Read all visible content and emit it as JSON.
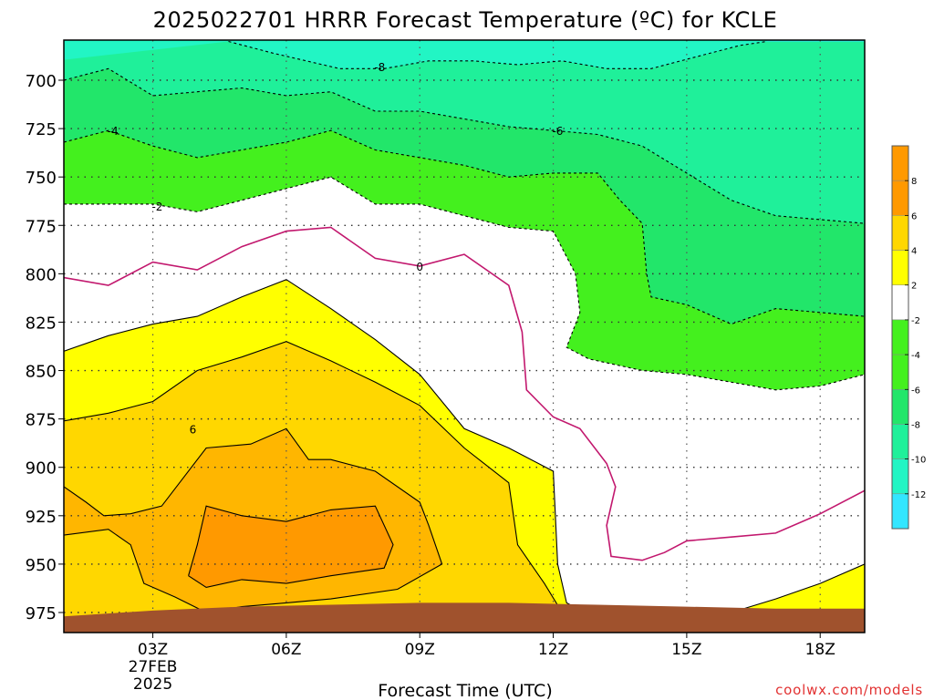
{
  "page": {
    "title": "2025022701 HRRR Forecast Temperature (ºC) for KCLE",
    "credit": "coolwx.com/models"
  },
  "colors": {
    "fill_minus12": "#33e6ff",
    "fill_minus10": "#22f5c4",
    "fill_minus8": "#1ff09a",
    "fill_minus6": "#22e66a",
    "fill_minus4": "#44f01e",
    "fill_0to2": "#ffffff",
    "fill_2to4": "#ffff00",
    "fill_4to6": "#ffd700",
    "fill_6to8": "#ffb600",
    "fill_8plus": "#ff9900",
    "ground": "#a0522d",
    "freezing_line": "#c2186e",
    "grid": "#888888"
  },
  "chart_data": {
    "type": "heatmap",
    "title": "2025022701 HRRR Forecast Temperature (ºC) for KCLE",
    "xlabel": "Forecast Time (UTC)",
    "ylabel": "",
    "x_unit": "hours since 2025-02-27 00Z",
    "xlim": [
      1,
      19
    ],
    "ylim": [
      975,
      680
    ],
    "x_ticks": [
      {
        "hour": 3,
        "label": "03Z",
        "sub1": "27FEB",
        "sub2": "2025"
      },
      {
        "hour": 6,
        "label": "06Z"
      },
      {
        "hour": 9,
        "label": "09Z"
      },
      {
        "hour": 12,
        "label": "12Z"
      },
      {
        "hour": 15,
        "label": "15Z"
      },
      {
        "hour": 18,
        "label": "18Z"
      }
    ],
    "y_ticks": [
      700,
      725,
      750,
      775,
      800,
      825,
      850,
      875,
      900,
      925,
      950,
      975
    ],
    "colorbar": {
      "levels": [
        -12,
        -10,
        -8,
        -6,
        -4,
        -2,
        2,
        4,
        6,
        8
      ],
      "labels": [
        "-12",
        "-10",
        "-8",
        "-6",
        "-4",
        "-2",
        "2",
        "4",
        "6",
        "8"
      ]
    },
    "contours": [
      {
        "level": -8,
        "color_key": "fill_minus8",
        "style": "dashed",
        "points": [
          [
            4.7,
            680
          ],
          [
            5.7,
            686
          ],
          [
            7.2,
            694
          ],
          [
            8.2,
            694
          ],
          [
            9.2,
            690
          ],
          [
            10.2,
            690
          ],
          [
            11.2,
            692
          ],
          [
            12.2,
            690
          ],
          [
            13.2,
            694
          ],
          [
            14.2,
            694
          ],
          [
            15.2,
            688
          ],
          [
            16.2,
            682
          ],
          [
            16.8,
            680
          ]
        ],
        "label": {
          "x": 8.1,
          "p": 693,
          "text": "-8"
        }
      },
      {
        "level": -6,
        "color_key": "fill_minus6",
        "style": "dashed",
        "points": [
          [
            1,
            700
          ],
          [
            2,
            694
          ],
          [
            3,
            708
          ],
          [
            4,
            706
          ],
          [
            5,
            704
          ],
          [
            6,
            708
          ],
          [
            7,
            706
          ],
          [
            8,
            716
          ],
          [
            9,
            716
          ],
          [
            10,
            720
          ],
          [
            11,
            724
          ],
          [
            12,
            726
          ],
          [
            13,
            728
          ],
          [
            14,
            734
          ],
          [
            15,
            748
          ],
          [
            16,
            762
          ],
          [
            17,
            770
          ],
          [
            18,
            772
          ],
          [
            19,
            774
          ]
        ],
        "label": {
          "x": 12.1,
          "p": 726,
          "text": "-6"
        }
      },
      {
        "level": -4,
        "color_key": "fill_minus4",
        "style": "dashed",
        "points": [
          [
            1,
            732
          ],
          [
            2,
            726
          ],
          [
            3,
            734
          ],
          [
            4,
            740
          ],
          [
            5,
            736
          ],
          [
            6,
            732
          ],
          [
            7,
            726
          ],
          [
            8,
            736
          ],
          [
            9,
            740
          ],
          [
            10,
            744
          ],
          [
            11,
            750
          ],
          [
            12,
            748
          ],
          [
            13,
            748
          ],
          [
            13.5,
            762
          ],
          [
            14,
            774
          ],
          [
            14.1,
            800
          ],
          [
            14.2,
            812
          ],
          [
            15,
            816
          ],
          [
            16,
            826
          ],
          [
            17,
            818
          ],
          [
            18,
            820
          ],
          [
            19,
            822
          ]
        ],
        "label": {
          "x": 2.1,
          "p": 726,
          "text": "-4"
        }
      },
      {
        "level": -2,
        "color_key": "fill_minus2",
        "style": "dashed",
        "points": [
          [
            1,
            764
          ],
          [
            2,
            764
          ],
          [
            3,
            764
          ],
          [
            4,
            768
          ],
          [
            5,
            762
          ],
          [
            6,
            756
          ],
          [
            7,
            750
          ],
          [
            8,
            764
          ],
          [
            9,
            764
          ],
          [
            10,
            770
          ],
          [
            11,
            776
          ],
          [
            12,
            778
          ],
          [
            12.5,
            800
          ],
          [
            12.6,
            820
          ],
          [
            12.3,
            838
          ],
          [
            12.8,
            844
          ],
          [
            14,
            850
          ],
          [
            15,
            852
          ],
          [
            16,
            856
          ],
          [
            17,
            860
          ],
          [
            18,
            858
          ],
          [
            19,
            852
          ]
        ],
        "label": {
          "x": 3.1,
          "p": 765,
          "text": "-2"
        }
      },
      {
        "level": 0,
        "color_key": "freezing_line",
        "style": "solid",
        "points": [
          [
            1,
            802
          ],
          [
            2,
            806
          ],
          [
            3,
            794
          ],
          [
            4,
            798
          ],
          [
            5,
            786
          ],
          [
            6,
            778
          ],
          [
            7,
            776
          ],
          [
            8,
            792
          ],
          [
            9,
            796
          ],
          [
            10,
            790
          ],
          [
            11,
            806
          ],
          [
            11.3,
            830
          ],
          [
            11.4,
            860
          ],
          [
            12,
            874
          ],
          [
            12.6,
            880
          ],
          [
            13.2,
            898
          ],
          [
            13.4,
            910
          ],
          [
            13.2,
            930
          ],
          [
            13.3,
            946
          ],
          [
            14,
            948
          ],
          [
            14.5,
            944
          ],
          [
            15,
            938
          ],
          [
            16,
            936
          ],
          [
            17,
            934
          ],
          [
            18,
            924
          ],
          [
            19,
            912
          ]
        ],
        "label": {
          "x": 9.0,
          "p": 796,
          "text": "0"
        }
      },
      {
        "level": 2,
        "color_key": "fill_2to4",
        "style": "solid",
        "points": [
          [
            1,
            840
          ],
          [
            2,
            832
          ],
          [
            3,
            826
          ],
          [
            4,
            822
          ],
          [
            5,
            812
          ],
          [
            6,
            803
          ],
          [
            7,
            818
          ],
          [
            8,
            834
          ],
          [
            9,
            852
          ],
          [
            10,
            880
          ],
          [
            11,
            890
          ],
          [
            12,
            902
          ],
          [
            12.1,
            950
          ],
          [
            12.3,
            970
          ],
          [
            12.7,
            975
          ]
        ],
        "points2": [
          [
            16,
            975
          ],
          [
            17,
            968
          ],
          [
            18,
            960
          ],
          [
            19,
            950
          ]
        ],
        "label": null
      },
      {
        "level": 4,
        "color_key": "fill_4to6",
        "style": "solid",
        "points": [
          [
            1,
            876
          ],
          [
            2,
            872
          ],
          [
            3,
            866
          ],
          [
            4,
            850
          ],
          [
            5,
            843
          ],
          [
            6,
            835
          ],
          [
            7,
            845
          ],
          [
            8,
            856
          ],
          [
            9,
            868
          ],
          [
            10,
            890
          ],
          [
            11,
            908
          ],
          [
            11.2,
            940
          ],
          [
            11.8,
            960
          ],
          [
            12.2,
            975
          ]
        ],
        "label": null
      },
      {
        "level": 6,
        "color_key": "fill_6to8",
        "style": "solid",
        "points": [
          [
            1,
            910
          ],
          [
            1.5,
            918
          ],
          [
            1.9,
            925
          ],
          [
            2.5,
            924
          ],
          [
            3.2,
            920
          ],
          [
            4.2,
            890
          ],
          [
            5.2,
            888
          ],
          [
            6,
            880
          ],
          [
            6.5,
            896
          ],
          [
            7,
            896
          ],
          [
            8,
            902
          ],
          [
            9,
            918
          ],
          [
            9.2,
            930
          ],
          [
            9.5,
            950
          ],
          [
            8.5,
            963
          ],
          [
            7,
            968
          ],
          [
            6,
            970
          ],
          [
            5,
            972
          ],
          [
            4.2,
            975
          ]
        ],
        "points2": [
          [
            1,
            935
          ],
          [
            2,
            932
          ],
          [
            2.5,
            940
          ],
          [
            2.8,
            960
          ],
          [
            3.5,
            967
          ],
          [
            4.2,
            975
          ]
        ],
        "label": {
          "x": 3.9,
          "p": 880,
          "text": "6"
        }
      },
      {
        "level": 8,
        "color_key": "fill_8plus",
        "style": "solid",
        "points": [
          [
            3.8,
            956
          ],
          [
            4,
            940
          ],
          [
            4.2,
            920
          ],
          [
            5,
            925
          ],
          [
            6,
            928
          ],
          [
            7,
            922
          ],
          [
            8,
            920
          ],
          [
            8.4,
            940
          ],
          [
            8.2,
            952
          ],
          [
            7,
            956
          ],
          [
            6,
            960
          ],
          [
            5,
            958
          ],
          [
            4.2,
            962
          ],
          [
            3.8,
            956
          ]
        ],
        "label": null
      }
    ],
    "ground": {
      "points": [
        [
          1,
          977
        ],
        [
          3,
          974
        ],
        [
          5,
          972
        ],
        [
          7,
          971
        ],
        [
          9,
          970
        ],
        [
          11,
          970
        ],
        [
          13,
          971
        ],
        [
          15,
          972
        ],
        [
          17,
          973
        ],
        [
          19,
          973
        ]
      ]
    }
  }
}
